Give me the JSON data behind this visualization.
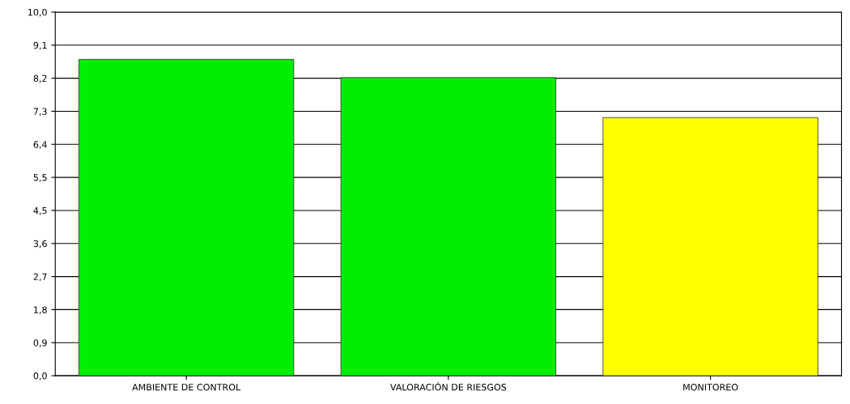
{
  "chart_data": {
    "type": "bar",
    "categories": [
      "AMBIENTE DE CONTROL",
      "VALORACIÓN DE RIESGOS",
      "MONITOREO"
    ],
    "values": [
      8.7,
      8.2,
      7.1
    ],
    "colors": [
      "#00ee00",
      "#00ee00",
      "#ffff00"
    ],
    "ylim": [
      0,
      10
    ],
    "yticks": [
      {
        "value": 0,
        "label": "0,0"
      },
      {
        "value": 0.909,
        "label": "0,9"
      },
      {
        "value": 1.818,
        "label": "1,8"
      },
      {
        "value": 2.727,
        "label": "2,7"
      },
      {
        "value": 3.636,
        "label": "3,6"
      },
      {
        "value": 4.545,
        "label": "4,5"
      },
      {
        "value": 5.455,
        "label": "5,5"
      },
      {
        "value": 6.364,
        "label": "6,4"
      },
      {
        "value": 7.273,
        "label": "7,3"
      },
      {
        "value": 8.182,
        "label": "8,2"
      },
      {
        "value": 9.091,
        "label": "9,1"
      },
      {
        "value": 10,
        "label": "10,0"
      }
    ],
    "grid": "y"
  }
}
